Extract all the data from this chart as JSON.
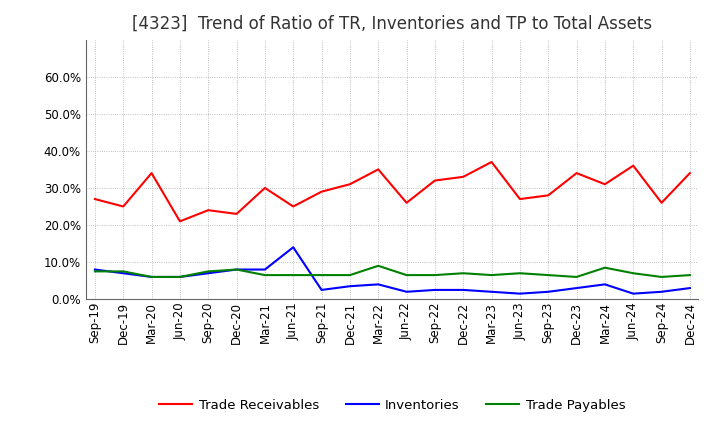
{
  "title": "[4323]  Trend of Ratio of TR, Inventories and TP to Total Assets",
  "labels": [
    "Sep-19",
    "Dec-19",
    "Mar-20",
    "Jun-20",
    "Sep-20",
    "Dec-20",
    "Mar-21",
    "Jun-21",
    "Sep-21",
    "Dec-21",
    "Mar-22",
    "Jun-22",
    "Sep-22",
    "Dec-22",
    "Mar-23",
    "Jun-23",
    "Sep-23",
    "Dec-23",
    "Mar-24",
    "Jun-24",
    "Sep-24",
    "Dec-24"
  ],
  "trade_receivables": [
    0.27,
    0.25,
    0.34,
    0.21,
    0.24,
    0.23,
    0.3,
    0.25,
    0.29,
    0.31,
    0.35,
    0.26,
    0.32,
    0.33,
    0.37,
    0.27,
    0.28,
    0.34,
    0.31,
    0.36,
    0.26,
    0.34
  ],
  "inventories": [
    0.08,
    0.07,
    0.06,
    0.06,
    0.07,
    0.08,
    0.08,
    0.14,
    0.025,
    0.035,
    0.04,
    0.02,
    0.025,
    0.025,
    0.02,
    0.015,
    0.02,
    0.03,
    0.04,
    0.015,
    0.02,
    0.03
  ],
  "trade_payables": [
    0.075,
    0.075,
    0.06,
    0.06,
    0.075,
    0.08,
    0.065,
    0.065,
    0.065,
    0.065,
    0.09,
    0.065,
    0.065,
    0.07,
    0.065,
    0.07,
    0.065,
    0.06,
    0.085,
    0.07,
    0.06,
    0.065
  ],
  "ylim": [
    0.0,
    0.7
  ],
  "yticks": [
    0.0,
    0.1,
    0.2,
    0.3,
    0.4,
    0.5,
    0.6
  ],
  "line_colors": {
    "trade_receivables": "#FF0000",
    "inventories": "#0000FF",
    "trade_payables": "#008000"
  },
  "legend_labels": [
    "Trade Receivables",
    "Inventories",
    "Trade Payables"
  ],
  "background_color": "#FFFFFF",
  "plot_bg_color": "#FFFFFF",
  "grid_color": "#999999",
  "title_fontsize": 12,
  "tick_fontsize": 8.5,
  "legend_fontsize": 9.5
}
